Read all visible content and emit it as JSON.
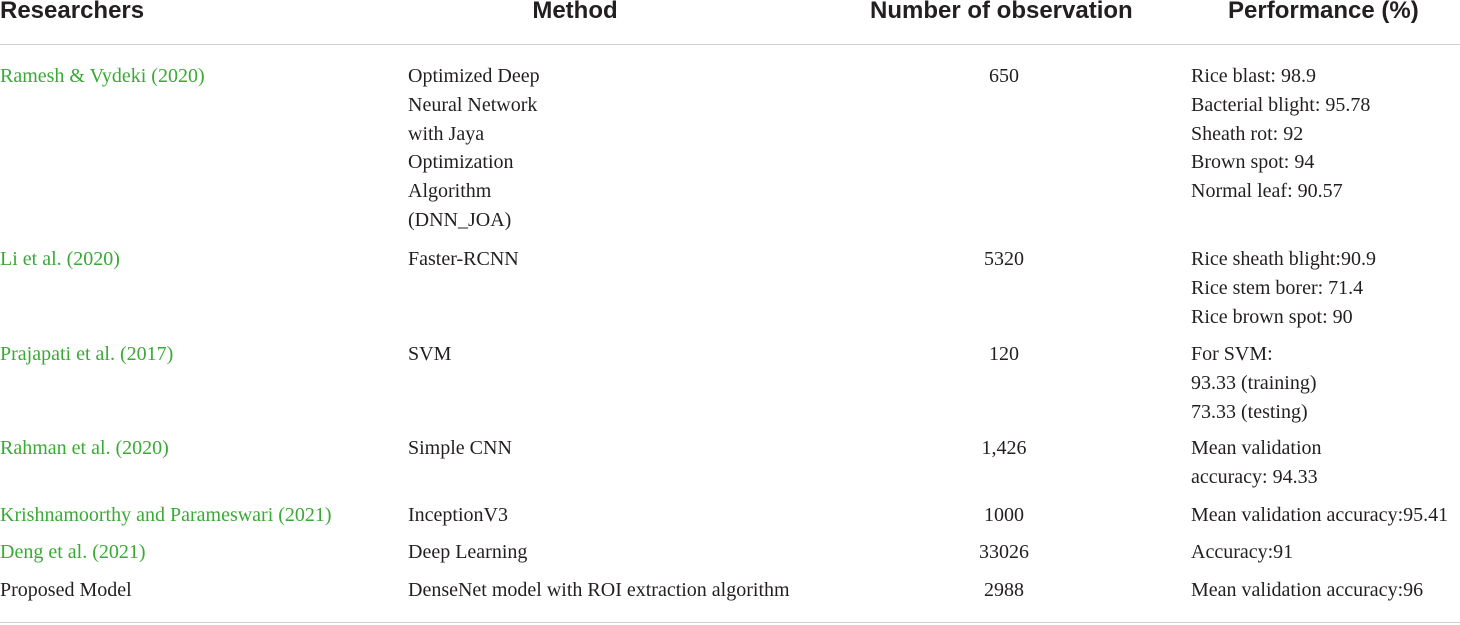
{
  "headers": {
    "researchers": "Researchers",
    "method": "Method",
    "observations": "Number of observation",
    "performance": "Performance (%)"
  },
  "rows": [
    {
      "researcher": "Ramesh & Vydeki (2020)",
      "method": [
        "Optimized Deep",
        "Neural Network",
        "with Jaya",
        "Optimization",
        "Algorithm",
        "(DNN_JOA)"
      ],
      "observations": "650",
      "performance": [
        "Rice blast: 98.9",
        "Bacterial blight: 95.78",
        "Sheath rot: 92",
        "Brown spot: 94",
        "Normal leaf: 90.57"
      ]
    },
    {
      "researcher": "Li et al. (2020)",
      "method": [
        "Faster-RCNN"
      ],
      "observations": "5320",
      "performance": [
        "Rice sheath blight:90.9",
        "Rice stem borer: 71.4",
        "Rice brown spot: 90"
      ]
    },
    {
      "researcher": "Prajapati et al. (2017)",
      "method": [
        "SVM"
      ],
      "observations": "120",
      "performance": [
        "For SVM:",
        "93.33 (training)",
        "73.33 (testing)"
      ]
    },
    {
      "researcher": "Rahman et al. (2020)",
      "method": [
        "Simple CNN"
      ],
      "observations": "1,426",
      "performance": [
        "Mean validation",
        "accuracy: 94.33"
      ]
    },
    {
      "researcher": "Krishnamoorthy and Parameswari (2021)",
      "method": [
        "InceptionV3"
      ],
      "observations": "1000",
      "performance": [
        "Mean validation accuracy:95.41"
      ]
    },
    {
      "researcher": "Deng et al. (2021)",
      "method": [
        "Deep Learning"
      ],
      "observations": "33026",
      "performance": [
        "Accuracy:91"
      ]
    },
    {
      "researcher": "Proposed Model",
      "method": [
        "DenseNet model with ROI extraction algorithm"
      ],
      "observations": "2988",
      "performance": [
        "Mean validation accuracy:96"
      ]
    }
  ],
  "colors": {
    "link": "#3aa935",
    "text": "#231f20",
    "rule": "#cfcfcf"
  }
}
